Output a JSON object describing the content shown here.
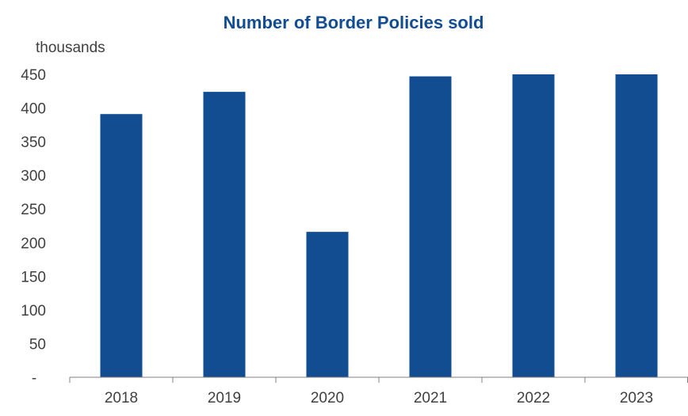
{
  "chart_data": {
    "type": "bar",
    "title": "Number of Border Policies sold",
    "ylabel": "thousands",
    "xlabel": "",
    "categories": [
      "2018",
      "2019",
      "2020",
      "2021",
      "2022",
      "2023"
    ],
    "values": [
      391,
      424,
      216,
      447,
      450,
      450
    ],
    "ylim": [
      0,
      450
    ],
    "yticks": [
      0,
      50,
      100,
      150,
      200,
      250,
      300,
      350,
      400,
      450
    ],
    "ytick_labels": [
      "-",
      "50",
      "100",
      "150",
      "200",
      "250",
      "300",
      "350",
      "400",
      "450"
    ],
    "grid": false,
    "legend": "none",
    "colors": {
      "bar": "#124c91",
      "title": "#124c91",
      "axis": "#808080",
      "text": "#404040"
    }
  }
}
